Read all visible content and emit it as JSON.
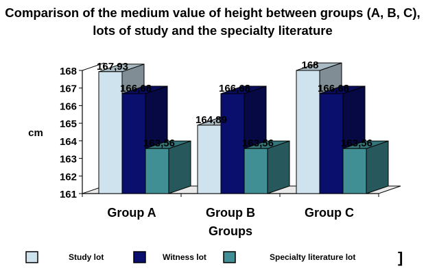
{
  "chart_data": {
    "type": "bar",
    "title": "Comparison of the medium value of height between groups (A, B, C), lots of study and the specialty literature",
    "xlabel": "Groups",
    "ylabel": "cm",
    "ylim": [
      161,
      168
    ],
    "yticks": [
      "161",
      "162",
      "163",
      "164",
      "165",
      "166",
      "167",
      "168"
    ],
    "categories": [
      "Group A",
      "Group B",
      "Group C"
    ],
    "series": [
      {
        "name": "Study lot",
        "values": [
          167.93,
          164.89,
          168
        ],
        "labels": [
          "167,93",
          "164,89",
          "168"
        ],
        "color": "#cfe3ee"
      },
      {
        "name": "Witness lot",
        "values": [
          166.68,
          166.68,
          166.68
        ],
        "labels": [
          "166,68",
          "166,68",
          "166,68"
        ],
        "color": "#0a0f6e"
      },
      {
        "name": "Specialty literature lot",
        "values": [
          163.56,
          163.56,
          163.56
        ],
        "labels": [
          "163,56",
          "163,56",
          "163,56"
        ],
        "color": "#3f8f95"
      }
    ],
    "grid": false,
    "legend": "bottom"
  },
  "legend_end_mark": "]"
}
